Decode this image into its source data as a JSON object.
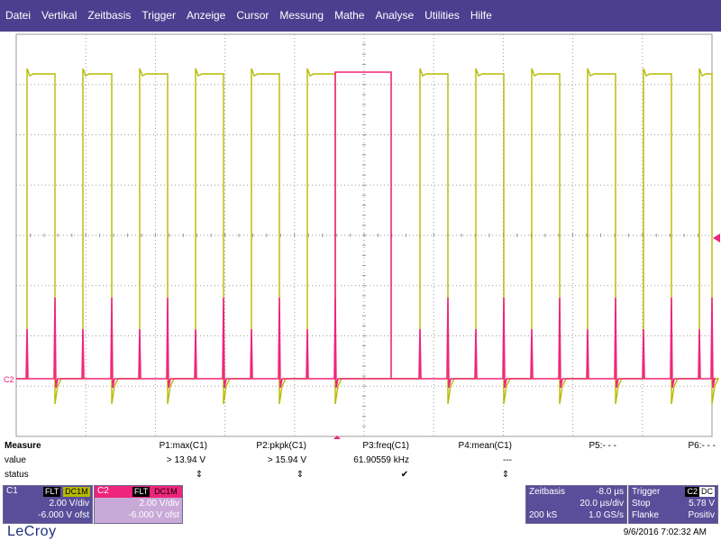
{
  "menu": [
    "Datei",
    "Vertikal",
    "Zeitbasis",
    "Trigger",
    "Anzeige",
    "Cursor",
    "Messung",
    "Mathe",
    "Analyse",
    "Utilities",
    "Hilfe"
  ],
  "scope": {
    "channel_label": "C2",
    "colors": {
      "c1": "#b8b800",
      "c2": "#f0247a",
      "grid": "#9a9a9a",
      "bg": "#ffffff"
    }
  },
  "measure": {
    "title": "Measure",
    "row_value_label": "value",
    "row_status_label": "status",
    "params": [
      {
        "name": "P1:max(C1)",
        "value": "> 13.94 V",
        "status": "⇕"
      },
      {
        "name": "P2:pkpk(C1)",
        "value": "> 15.94 V",
        "status": "⇕"
      },
      {
        "name": "P3:freq(C1)",
        "value": "61.90559 kHz",
        "status": "✔"
      },
      {
        "name": "P4:mean(C1)",
        "value": "---",
        "status": "⇕"
      },
      {
        "name": "P5:- - -",
        "value": "",
        "status": ""
      },
      {
        "name": "P6:- - -",
        "value": "",
        "status": ""
      }
    ]
  },
  "c1": {
    "label": "C1",
    "tag1": "FLT",
    "tag2": "DC1M",
    "vdiv": "2.00 V/div",
    "ofst": "-6.000 V ofst"
  },
  "c2": {
    "label": "C2",
    "tag1": "FLT",
    "tag2": "DC1M",
    "vdiv": "2.00 V/div",
    "ofst": "-6.000 V ofst"
  },
  "timebase": {
    "title": "Zeitbasis",
    "delay": "-8.0 µs",
    "tdiv": "20.0 µs/div",
    "samples": "200 kS",
    "rate": "1.0 GS/s"
  },
  "trigger": {
    "title": "Trigger",
    "tag1": "C2",
    "tag2": "DC",
    "mode": "Stop",
    "level": "5.78 V",
    "type": "Flanke",
    "slope": "Positiv"
  },
  "footer": {
    "brand": "LeCroy",
    "datetime": "9/6/2016 7:02:32 AM"
  }
}
